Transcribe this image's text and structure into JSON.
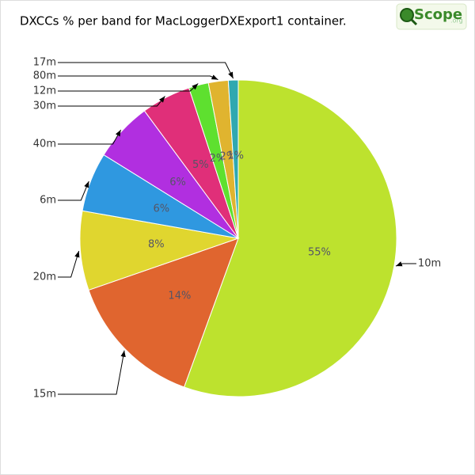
{
  "chart_data": {
    "type": "pie",
    "title": "DXCCs % per band for MacLoggerDXExport1 container.",
    "logo": {
      "text": "Scope",
      "suffix": ".org"
    },
    "categories": [
      "10m",
      "15m",
      "20m",
      "6m",
      "40m",
      "30m",
      "12m",
      "80m",
      "17m"
    ],
    "values": [
      55,
      14,
      8,
      6,
      6,
      5,
      2,
      2,
      1
    ],
    "value_labels": [
      "55%",
      "14%",
      "8%",
      "6%",
      "6%",
      "5%",
      "2%",
      "2%",
      "1%"
    ],
    "colors": [
      "#bde22e",
      "#e0652f",
      "#e0d62f",
      "#2f98e0",
      "#b12fe0",
      "#e02f79",
      "#5ee02f",
      "#e0b42f",
      "#2fa8b0"
    ]
  }
}
